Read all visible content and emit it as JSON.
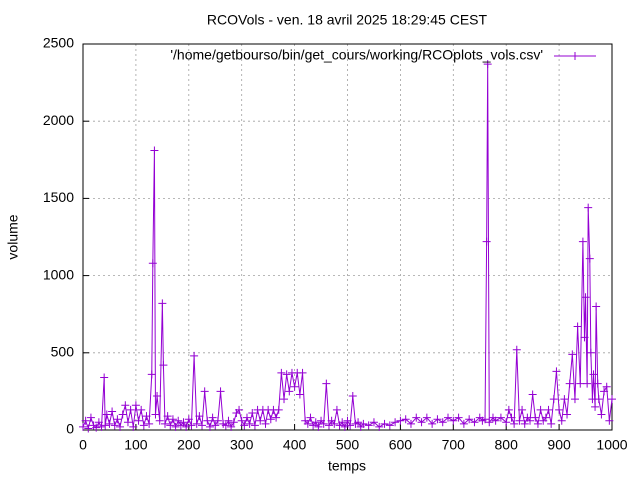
{
  "chart_data": {
    "type": "line",
    "title": "RCOVols - ven. 18 avril 2025 18:29:45 CEST",
    "x_label": "temps",
    "y_label": "volume",
    "xlim": [
      0,
      1000
    ],
    "xticks": [
      0,
      100,
      200,
      300,
      400,
      500,
      600,
      700,
      800,
      900,
      1000
    ],
    "ylim": [
      0,
      2500
    ],
    "yticks": [
      0,
      500,
      1000,
      1500,
      2000,
      2500
    ],
    "grid": true,
    "legend": "top-right",
    "series": [
      {
        "name": "'/home/getbourso/bin/get_cours/working/RCOplots_vols.csv'",
        "color": "#9400d3",
        "x": [
          0,
          5,
          10,
          15,
          20,
          25,
          30,
          35,
          40,
          42,
          45,
          50,
          55,
          60,
          65,
          70,
          75,
          80,
          85,
          90,
          95,
          100,
          105,
          110,
          115,
          120,
          125,
          130,
          132,
          135,
          137,
          140,
          145,
          150,
          152,
          155,
          160,
          165,
          170,
          175,
          180,
          185,
          190,
          195,
          200,
          205,
          210,
          215,
          220,
          225,
          230,
          235,
          240,
          245,
          250,
          255,
          260,
          265,
          270,
          275,
          280,
          285,
          290,
          295,
          300,
          305,
          310,
          315,
          320,
          325,
          330,
          335,
          340,
          345,
          350,
          355,
          360,
          365,
          370,
          375,
          380,
          385,
          390,
          395,
          400,
          405,
          410,
          415,
          420,
          425,
          430,
          435,
          440,
          445,
          450,
          455,
          460,
          465,
          470,
          475,
          480,
          485,
          490,
          495,
          500,
          505,
          510,
          515,
          520,
          525,
          530,
          540,
          550,
          560,
          570,
          580,
          590,
          600,
          610,
          620,
          630,
          640,
          650,
          660,
          670,
          680,
          690,
          700,
          710,
          720,
          730,
          740,
          750,
          755,
          760,
          763,
          765,
          768,
          775,
          780,
          790,
          800,
          805,
          810,
          815,
          820,
          825,
          830,
          835,
          840,
          845,
          850,
          855,
          860,
          865,
          870,
          875,
          880,
          885,
          890,
          895,
          900,
          905,
          910,
          915,
          920,
          925,
          930,
          935,
          940,
          945,
          948,
          950,
          953,
          955,
          958,
          960,
          963,
          965,
          968,
          970,
          973,
          975,
          980,
          985,
          990,
          995,
          1000
        ],
        "values": [
          20,
          60,
          10,
          80,
          30,
          15,
          50,
          20,
          340,
          30,
          100,
          40,
          120,
          30,
          70,
          20,
          100,
          160,
          50,
          130,
          20,
          160,
          60,
          130,
          30,
          90,
          40,
          360,
          1080,
          1810,
          100,
          220,
          60,
          820,
          420,
          40,
          90,
          30,
          70,
          20,
          60,
          30,
          50,
          20,
          70,
          30,
          480,
          40,
          90,
          30,
          250,
          60,
          20,
          80,
          30,
          60,
          250,
          40,
          30,
          60,
          20,
          50,
          110,
          130,
          60,
          30,
          80,
          40,
          110,
          30,
          130,
          60,
          130,
          40,
          130,
          70,
          130,
          80,
          130,
          370,
          200,
          360,
          250,
          370,
          280,
          370,
          230,
          370,
          60,
          40,
          80,
          30,
          50,
          20,
          60,
          40,
          300,
          30,
          60,
          40,
          130,
          30,
          50,
          20,
          60,
          30,
          220,
          40,
          50,
          20,
          40,
          30,
          50,
          20,
          40,
          30,
          50,
          60,
          70,
          40,
          80,
          50,
          80,
          40,
          70,
          50,
          80,
          60,
          80,
          40,
          70,
          50,
          80,
          60,
          70,
          1220,
          2370,
          50,
          80,
          60,
          80,
          50,
          130,
          80,
          40,
          520,
          60,
          130,
          40,
          80,
          60,
          230,
          80,
          40,
          130,
          60,
          80,
          130,
          40,
          200,
          380,
          130,
          60,
          200,
          100,
          300,
          490,
          200,
          670,
          300,
          1220,
          600,
          860,
          300,
          1440,
          1110,
          500,
          200,
          360,
          150,
          800,
          300,
          200,
          100,
          250,
          280,
          60,
          200
        ]
      }
    ]
  }
}
